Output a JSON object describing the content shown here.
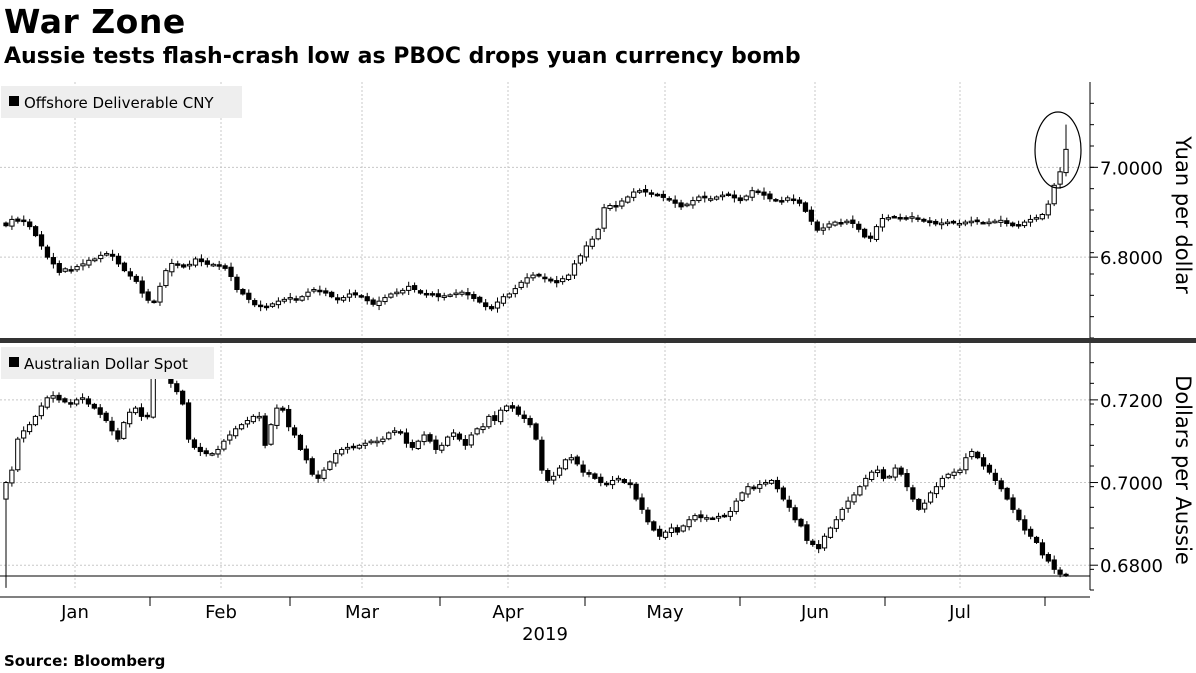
{
  "header": {
    "title": "War Zone",
    "subtitle": "Aussie tests flash-crash low as PBOC drops yuan currency bomb"
  },
  "footer": {
    "source": "Source: Bloomberg"
  },
  "colors": {
    "up_fill": "#ffffff",
    "down_fill": "#000000",
    "stroke": "#000000",
    "grid": "#c8c8c8",
    "divider": "#333333",
    "legend_bg": "#eeeeee"
  },
  "chart_data": [
    {
      "type": "candlestick",
      "legend": "Offshore Deliverable CNY",
      "ylabel": "Yuan per dollar",
      "ylim": [
        6.62,
        7.19
      ],
      "yticks": [
        "6.8000",
        "7.0000"
      ],
      "annotation": "circle",
      "ohlc_close": [
        6.87,
        6.884,
        6.88,
        6.88,
        6.868,
        6.848,
        6.825,
        6.8,
        6.785,
        6.766,
        6.774,
        6.772,
        6.779,
        6.785,
        6.793,
        6.796,
        6.804,
        6.808,
        6.802,
        6.785,
        6.77,
        6.758,
        6.746,
        6.72,
        6.704,
        6.7,
        6.735,
        6.77,
        6.786,
        6.782,
        6.778,
        6.784,
        6.796,
        6.79,
        6.784,
        6.784,
        6.78,
        6.775,
        6.757,
        6.728,
        6.718,
        6.706,
        6.694,
        6.69,
        6.688,
        6.696,
        6.702,
        6.706,
        6.71,
        6.705,
        6.712,
        6.722,
        6.728,
        6.725,
        6.72,
        6.712,
        6.705,
        6.71,
        6.718,
        6.716,
        6.712,
        6.703,
        6.695,
        6.702,
        6.71,
        6.718,
        6.722,
        6.726,
        6.735,
        6.728,
        6.72,
        6.718,
        6.716,
        6.712,
        6.714,
        6.716,
        6.72,
        6.722,
        6.716,
        6.708,
        6.7,
        6.69,
        6.685,
        6.7,
        6.712,
        6.718,
        6.73,
        6.744,
        6.754,
        6.76,
        6.758,
        6.752,
        6.747,
        6.743,
        6.752,
        6.76,
        6.785,
        6.803,
        6.825,
        6.84,
        6.862,
        6.91,
        6.915,
        6.912,
        6.925,
        6.934,
        6.945,
        6.948,
        6.945,
        6.94,
        6.938,
        6.933,
        6.928,
        6.92,
        6.912,
        6.918,
        6.926,
        6.934,
        6.932,
        6.93,
        6.934,
        6.938,
        6.94,
        6.932,
        6.926,
        6.936,
        6.948,
        6.944,
        6.938,
        6.93,
        6.926,
        6.925,
        6.932,
        6.928,
        6.92,
        6.902,
        6.88,
        6.86,
        6.865,
        6.874,
        6.878,
        6.876,
        6.88,
        6.875,
        6.862,
        6.845,
        6.842,
        6.868,
        6.886,
        6.888,
        6.89,
        6.888,
        6.886,
        6.89,
        6.885,
        6.88,
        6.877,
        6.874,
        6.876,
        6.878,
        6.876,
        6.875,
        6.878,
        6.88,
        6.879,
        6.877,
        6.878,
        6.88,
        6.882,
        6.875,
        6.87,
        6.872,
        6.878,
        6.884,
        6.888,
        6.895,
        6.918,
        6.96,
        6.99,
        7.04
      ]
    },
    {
      "type": "candlestick",
      "legend": "Australian Dollar Spot",
      "ylabel": "Dollars per Aussie",
      "ylim": [
        0.674,
        0.734
      ],
      "yticks": [
        "0.6800",
        "0.7000",
        "0.7200"
      ],
      "ohlc_close": [
        0.7,
        0.703,
        0.7105,
        0.7125,
        0.714,
        0.716,
        0.7185,
        0.7205,
        0.721,
        0.72,
        0.7195,
        0.719,
        0.72,
        0.7205,
        0.719,
        0.718,
        0.7165,
        0.715,
        0.7125,
        0.7105,
        0.7145,
        0.717,
        0.718,
        0.716,
        0.716,
        0.726,
        0.728,
        0.726,
        0.724,
        0.722,
        0.719,
        0.7105,
        0.7085,
        0.7075,
        0.707,
        0.707,
        0.708,
        0.71,
        0.7115,
        0.713,
        0.714,
        0.715,
        0.716,
        0.716,
        0.709,
        0.714,
        0.718,
        0.7175,
        0.7135,
        0.7115,
        0.708,
        0.7055,
        0.702,
        0.701,
        0.703,
        0.705,
        0.707,
        0.708,
        0.7085,
        0.7085,
        0.709,
        0.7095,
        0.71,
        0.71,
        0.7105,
        0.712,
        0.7125,
        0.712,
        0.7095,
        0.7085,
        0.71,
        0.7115,
        0.71,
        0.708,
        0.709,
        0.711,
        0.712,
        0.7105,
        0.709,
        0.7115,
        0.713,
        0.7135,
        0.716,
        0.715,
        0.7175,
        0.7185,
        0.718,
        0.7165,
        0.7155,
        0.714,
        0.7105,
        0.703,
        0.7005,
        0.7015,
        0.7035,
        0.7055,
        0.706,
        0.7045,
        0.7025,
        0.702,
        0.701,
        0.7,
        0.6995,
        0.7005,
        0.701,
        0.7,
        0.6995,
        0.696,
        0.6935,
        0.6905,
        0.6885,
        0.687,
        0.688,
        0.689,
        0.688,
        0.6895,
        0.691,
        0.692,
        0.6915,
        0.6915,
        0.6913,
        0.6918,
        0.692,
        0.693,
        0.6955,
        0.6975,
        0.699,
        0.6985,
        0.6995,
        0.7,
        0.7005,
        0.6985,
        0.696,
        0.694,
        0.691,
        0.6895,
        0.686,
        0.685,
        0.684,
        0.687,
        0.689,
        0.691,
        0.6935,
        0.6955,
        0.697,
        0.699,
        0.701,
        0.7025,
        0.703,
        0.701,
        0.7015,
        0.7035,
        0.702,
        0.699,
        0.696,
        0.6935,
        0.695,
        0.6975,
        0.699,
        0.701,
        0.702,
        0.7025,
        0.703,
        0.706,
        0.7075,
        0.706,
        0.704,
        0.7025,
        0.7005,
        0.6985,
        0.696,
        0.6935,
        0.691,
        0.6885,
        0.687,
        0.6855,
        0.6825,
        0.681,
        0.679,
        0.6778,
        0.6775
      ]
    }
  ],
  "x_axis": {
    "months": [
      "Jan",
      "Feb",
      "Mar",
      "Apr",
      "May",
      "Jun",
      "Jul"
    ],
    "year": "2019"
  }
}
